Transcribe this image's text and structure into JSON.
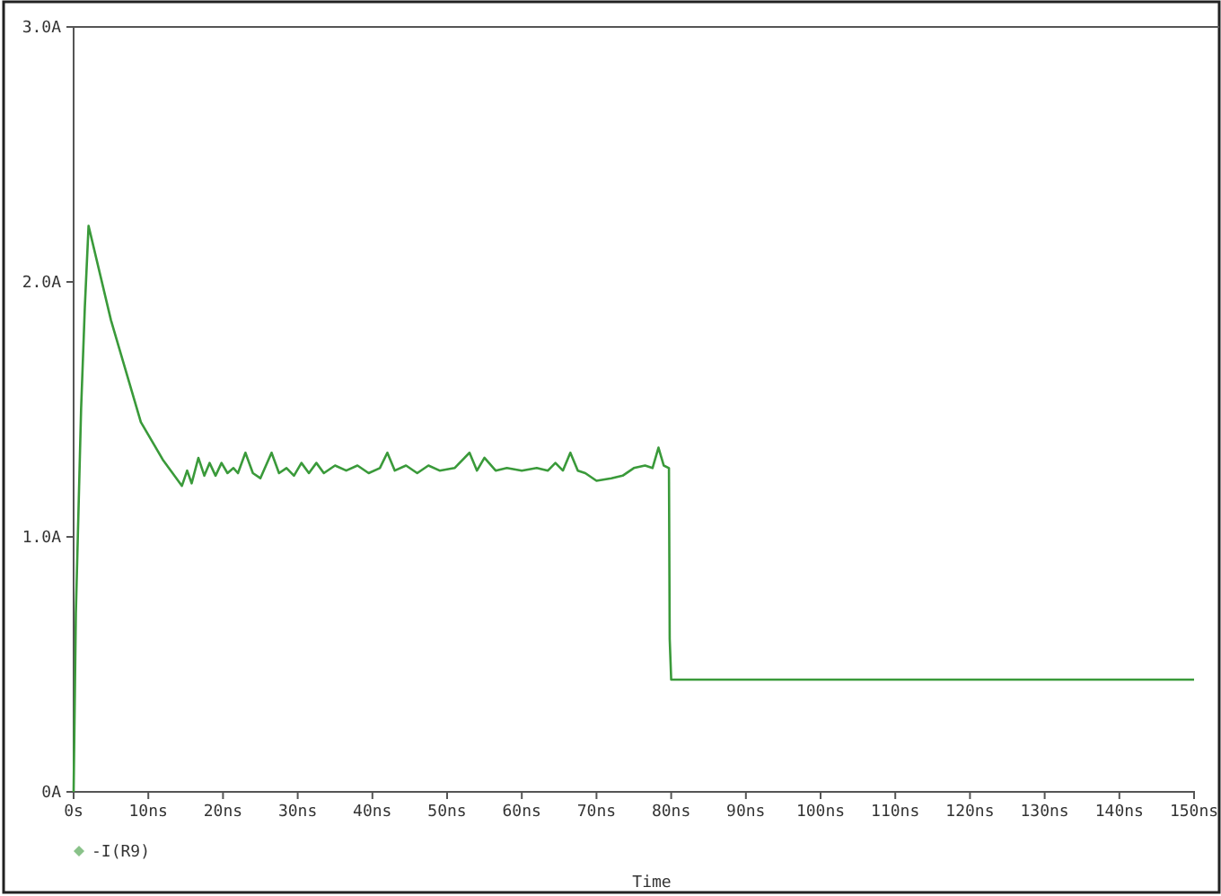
{
  "chart_data": {
    "type": "line",
    "xlabel": "Time",
    "legend": "bottom left",
    "grid": false,
    "xlim": [
      0,
      150
    ],
    "xticks": [
      {
        "value": 0,
        "label": "0s"
      },
      {
        "value": 10,
        "label": "10ns"
      },
      {
        "value": 20,
        "label": "20ns"
      },
      {
        "value": 30,
        "label": "30ns"
      },
      {
        "value": 40,
        "label": "40ns"
      },
      {
        "value": 50,
        "label": "50ns"
      },
      {
        "value": 60,
        "label": "60ns"
      },
      {
        "value": 70,
        "label": "70ns"
      },
      {
        "value": 80,
        "label": "80ns"
      },
      {
        "value": 90,
        "label": "90ns"
      },
      {
        "value": 100,
        "label": "100ns"
      },
      {
        "value": 110,
        "label": "110ns"
      },
      {
        "value": 120,
        "label": "120ns"
      },
      {
        "value": 130,
        "label": "130ns"
      },
      {
        "value": 140,
        "label": "140ns"
      },
      {
        "value": 150,
        "label": "150ns"
      }
    ],
    "ylim": [
      0,
      3
    ],
    "yticks": [
      {
        "value": 0,
        "label": "0A"
      },
      {
        "value": 1,
        "label": "1.0A"
      },
      {
        "value": 2,
        "label": "2.0A"
      },
      {
        "value": 3,
        "label": "3.0A"
      }
    ],
    "series": [
      {
        "name": "-I(R9)",
        "color": "#3a9a3a",
        "x": [
          0,
          0.3,
          1,
          1.5,
          2,
          5,
          9,
          12,
          14.5,
          15.2,
          15.8,
          16.7,
          17.5,
          18.2,
          19,
          19.8,
          20.6,
          21.4,
          22,
          23,
          24,
          25,
          26.5,
          27.5,
          28.5,
          29.5,
          30.5,
          31.5,
          32.5,
          33.5,
          35,
          36.5,
          38,
          39.5,
          41,
          42,
          43,
          44.5,
          46,
          47.5,
          49,
          51,
          53,
          54,
          55,
          56.5,
          58,
          60,
          62,
          63.5,
          64.5,
          65.5,
          66.5,
          67.5,
          68.5,
          70,
          72,
          73.5,
          75,
          76.5,
          77.5,
          78.3,
          79,
          79.7,
          79.8,
          80,
          90,
          150
        ],
        "values": [
          0,
          0.7,
          1.5,
          1.9,
          2.22,
          1.85,
          1.45,
          1.3,
          1.2,
          1.26,
          1.21,
          1.31,
          1.24,
          1.29,
          1.24,
          1.29,
          1.25,
          1.27,
          1.25,
          1.33,
          1.25,
          1.23,
          1.33,
          1.25,
          1.27,
          1.24,
          1.29,
          1.25,
          1.29,
          1.25,
          1.28,
          1.26,
          1.28,
          1.25,
          1.27,
          1.33,
          1.26,
          1.28,
          1.25,
          1.28,
          1.26,
          1.27,
          1.33,
          1.26,
          1.31,
          1.26,
          1.27,
          1.26,
          1.27,
          1.26,
          1.29,
          1.26,
          1.33,
          1.26,
          1.25,
          1.22,
          1.23,
          1.24,
          1.27,
          1.28,
          1.27,
          1.35,
          1.28,
          1.27,
          0.6,
          0.44,
          0.44,
          0.44
        ]
      }
    ]
  }
}
